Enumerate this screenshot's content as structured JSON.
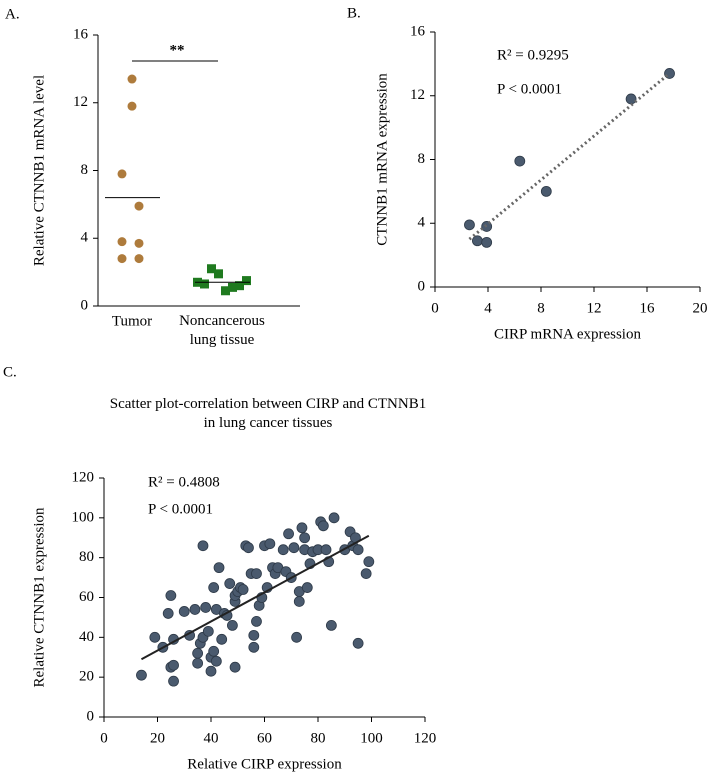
{
  "chart_data": [
    {
      "type": "strip",
      "label": "A.",
      "ylabel": "Relative CTNNB1 mRNA level",
      "categories": [
        "Tumor",
        "Noncancerous\nlung tissue"
      ],
      "groups": [
        {
          "color": "#ae7b3c",
          "marker": "circle",
          "values": [
            13.4,
            11.8,
            7.8,
            5.9,
            3.8,
            3.7,
            2.8,
            2.8
          ]
        },
        {
          "color": "#1f7a1f",
          "marker": "square",
          "values": [
            1.4,
            1.3,
            2.2,
            1.9,
            0.9,
            1.1,
            1.2,
            1.5
          ]
        }
      ],
      "means": [
        6.4,
        1.4
      ],
      "significance": "**",
      "ylim": [
        0,
        16
      ],
      "yticks": [
        0,
        4,
        8,
        12,
        16
      ]
    },
    {
      "type": "scatter",
      "label": "B.",
      "xlabel": "CIRP mRNA expression",
      "ylabel": "CTNNB1 mRNA expression",
      "annotations": [
        "R² = 0.9295",
        "P < 0.0001"
      ],
      "color": "#4a5a6e",
      "x": [
        2.6,
        3.2,
        3.9,
        3.9,
        6.4,
        8.4,
        14.8,
        17.7
      ],
      "y": [
        3.9,
        2.9,
        3.8,
        2.8,
        7.9,
        6.0,
        11.8,
        13.4
      ],
      "trendline": {
        "x": [
          2.6,
          17.7
        ],
        "y": [
          3.0,
          13.4
        ],
        "style": "dotted"
      },
      "xlim": [
        0,
        20
      ],
      "xticks": [
        0,
        4,
        8,
        12,
        16,
        20
      ],
      "ylim": [
        0,
        16
      ],
      "yticks": [
        0,
        4,
        8,
        12,
        16
      ]
    },
    {
      "type": "scatter",
      "label": "C.",
      "title": "Scatter plot-correlation  between CIRP and CTNNB1\nin lung cancer tissues",
      "xlabel": "Relative CIRP expression",
      "ylabel": "Relative  CTNNB1 expression",
      "annotations": [
        "R² = 0.4808",
        "P < 0.0001"
      ],
      "color": "#4a5a6e",
      "x": [
        14,
        19,
        22,
        24,
        25,
        25,
        26,
        26,
        26,
        30,
        32,
        34,
        35,
        35,
        36,
        37,
        37,
        38,
        39,
        40,
        40,
        41,
        41,
        42,
        42,
        43,
        44,
        45,
        46,
        47,
        48,
        49,
        49,
        49,
        50,
        51,
        52,
        53,
        54,
        55,
        56,
        56,
        57,
        57,
        58,
        59,
        60,
        61,
        62,
        63,
        64,
        65,
        67,
        68,
        69,
        70,
        71,
        72,
        73,
        73,
        74,
        75,
        75,
        76,
        77,
        78,
        80,
        81,
        82,
        83,
        84,
        86,
        85,
        90,
        92,
        93,
        94,
        95,
        95,
        98,
        99
      ],
      "y": [
        21,
        40,
        35,
        52,
        61,
        25,
        26,
        18,
        39,
        53,
        41,
        54,
        32,
        27,
        37,
        40,
        86,
        55,
        43,
        23,
        30,
        33,
        65,
        54,
        28,
        75,
        39,
        52,
        51,
        67,
        46,
        58,
        61,
        25,
        63,
        65,
        64,
        86,
        85,
        72,
        35,
        41,
        48,
        72,
        56,
        60,
        86,
        65,
        87,
        75,
        72,
        75,
        84,
        73,
        92,
        70,
        85,
        40,
        63,
        58,
        95,
        90,
        84,
        65,
        77,
        83,
        84,
        98,
        96,
        84,
        78,
        100,
        46,
        84,
        93,
        86,
        90,
        37,
        84,
        72,
        78
      ],
      "trendline": {
        "x": [
          14,
          99
        ],
        "y": [
          29,
          91
        ],
        "style": "solid"
      },
      "xlim": [
        0,
        120
      ],
      "xticks": [
        0,
        20,
        40,
        60,
        80,
        100,
        120
      ],
      "ylim": [
        0,
        120
      ],
      "yticks": [
        0,
        20,
        40,
        60,
        80,
        100,
        120
      ]
    }
  ]
}
